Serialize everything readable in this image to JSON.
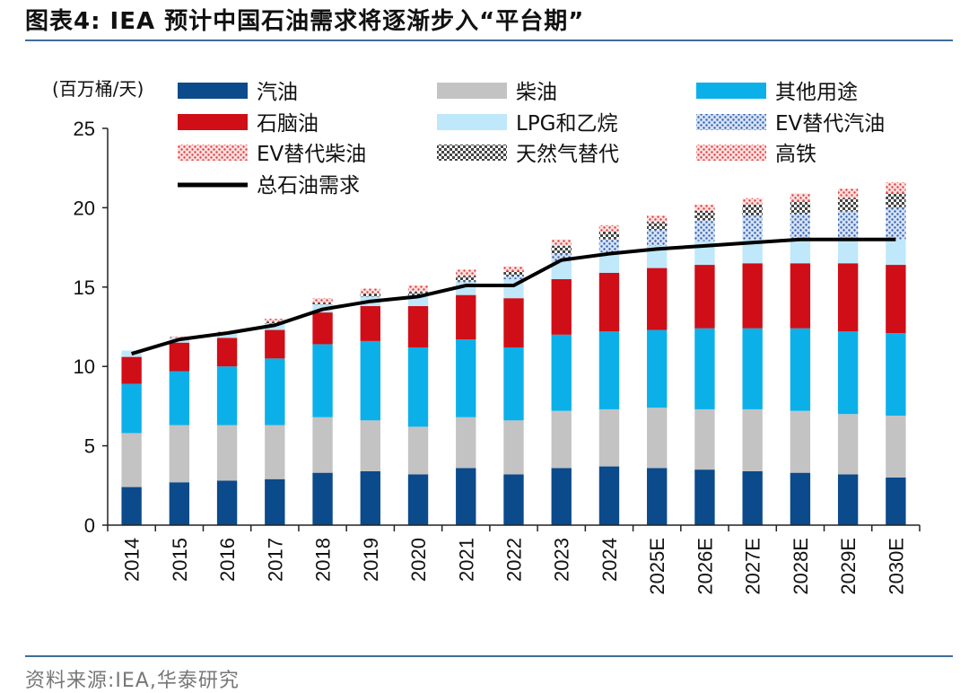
{
  "header": {
    "title": "图表4:  IEA 预计中国石油需求将逐渐步入“平台期”"
  },
  "footer": {
    "source": "资料来源:IEA,华泰研究"
  },
  "colors": {
    "gasoline": "#0b4a8b",
    "diesel": "#c3c3c3",
    "other": "#0cb0e8",
    "naphtha": "#cf0e17",
    "lpg": "#bfe8fa",
    "ev_gasoline": "#4a78c0",
    "ev_diesel": "#f08a8a",
    "gas_sub": "#555555",
    "hsr": "#f06a6a",
    "total": "#000000"
  },
  "chart_data": {
    "type": "bar",
    "stacked": true,
    "unit_label": "(百万桶/天)",
    "ylim": [
      0,
      25
    ],
    "yticks": [
      0,
      5,
      10,
      15,
      20,
      25
    ],
    "grid": false,
    "legend_position": "top",
    "categories": [
      "2014",
      "2015",
      "2016",
      "2017",
      "2018",
      "2019",
      "2020",
      "2021",
      "2022",
      "2023",
      "2024",
      "2025E",
      "2026E",
      "2027E",
      "2028E",
      "2029E",
      "2030E"
    ],
    "series": [
      {
        "key": "gasoline",
        "name": "汽油",
        "pattern": "solid",
        "values": [
          2.4,
          2.7,
          2.8,
          2.9,
          3.3,
          3.4,
          3.2,
          3.6,
          3.2,
          3.6,
          3.7,
          3.6,
          3.5,
          3.4,
          3.3,
          3.2,
          3.0
        ]
      },
      {
        "key": "diesel",
        "name": "柴油",
        "pattern": "solid",
        "values": [
          3.4,
          3.6,
          3.5,
          3.4,
          3.5,
          3.2,
          3.0,
          3.2,
          3.4,
          3.6,
          3.6,
          3.8,
          3.8,
          3.9,
          3.9,
          3.8,
          3.9
        ]
      },
      {
        "key": "other",
        "name": "其他用途",
        "pattern": "solid",
        "values": [
          3.1,
          3.4,
          3.7,
          4.2,
          4.6,
          5.0,
          5.0,
          4.9,
          4.6,
          4.8,
          4.9,
          4.9,
          5.1,
          5.1,
          5.2,
          5.2,
          5.2
        ]
      },
      {
        "key": "naphtha",
        "name": "石脑油",
        "pattern": "solid",
        "values": [
          1.7,
          1.8,
          1.8,
          1.8,
          2.0,
          2.2,
          2.6,
          2.8,
          3.1,
          3.5,
          3.7,
          3.9,
          4.0,
          4.1,
          4.1,
          4.3,
          4.3
        ]
      },
      {
        "key": "lpg",
        "name": "LPG和乙烷",
        "pattern": "solid",
        "values": [
          0.4,
          0.3,
          0.3,
          0.4,
          0.5,
          0.6,
          0.6,
          0.8,
          1.2,
          1.1,
          1.3,
          1.4,
          1.5,
          1.5,
          1.5,
          1.5,
          1.6
        ]
      },
      {
        "key": "ev_gasoline",
        "name": "EV替代汽油",
        "pattern": "dots",
        "values": [
          0,
          0,
          0,
          0,
          0,
          0,
          0.1,
          0.1,
          0.2,
          0.5,
          0.8,
          1.0,
          1.3,
          1.5,
          1.6,
          1.8,
          2.0
        ]
      },
      {
        "key": "ev_diesel",
        "name": "EV替代柴油",
        "pattern": "dots-red",
        "values": [
          0,
          0,
          0,
          0,
          0,
          0,
          0,
          0,
          0,
          0,
          0,
          0,
          0,
          0,
          0,
          0,
          0
        ]
      },
      {
        "key": "gas_sub",
        "name": "天然气替代",
        "pattern": "check",
        "values": [
          0,
          0,
          0,
          0.1,
          0.1,
          0.2,
          0.2,
          0.3,
          0.3,
          0.5,
          0.5,
          0.5,
          0.6,
          0.7,
          0.8,
          0.8,
          0.9
        ]
      },
      {
        "key": "hsr",
        "name": "高铁",
        "pattern": "dots-red",
        "values": [
          0,
          0.1,
          0.1,
          0.2,
          0.3,
          0.3,
          0.4,
          0.4,
          0.3,
          0.4,
          0.4,
          0.4,
          0.4,
          0.4,
          0.5,
          0.6,
          0.7
        ]
      }
    ],
    "line": {
      "key": "total",
      "name": "总石油需求",
      "values": [
        10.8,
        11.7,
        12.1,
        12.6,
        13.6,
        14.1,
        14.4,
        15.1,
        15.1,
        16.7,
        17.1,
        17.4,
        17.6,
        17.8,
        18.0,
        18.0,
        18.0
      ]
    }
  }
}
